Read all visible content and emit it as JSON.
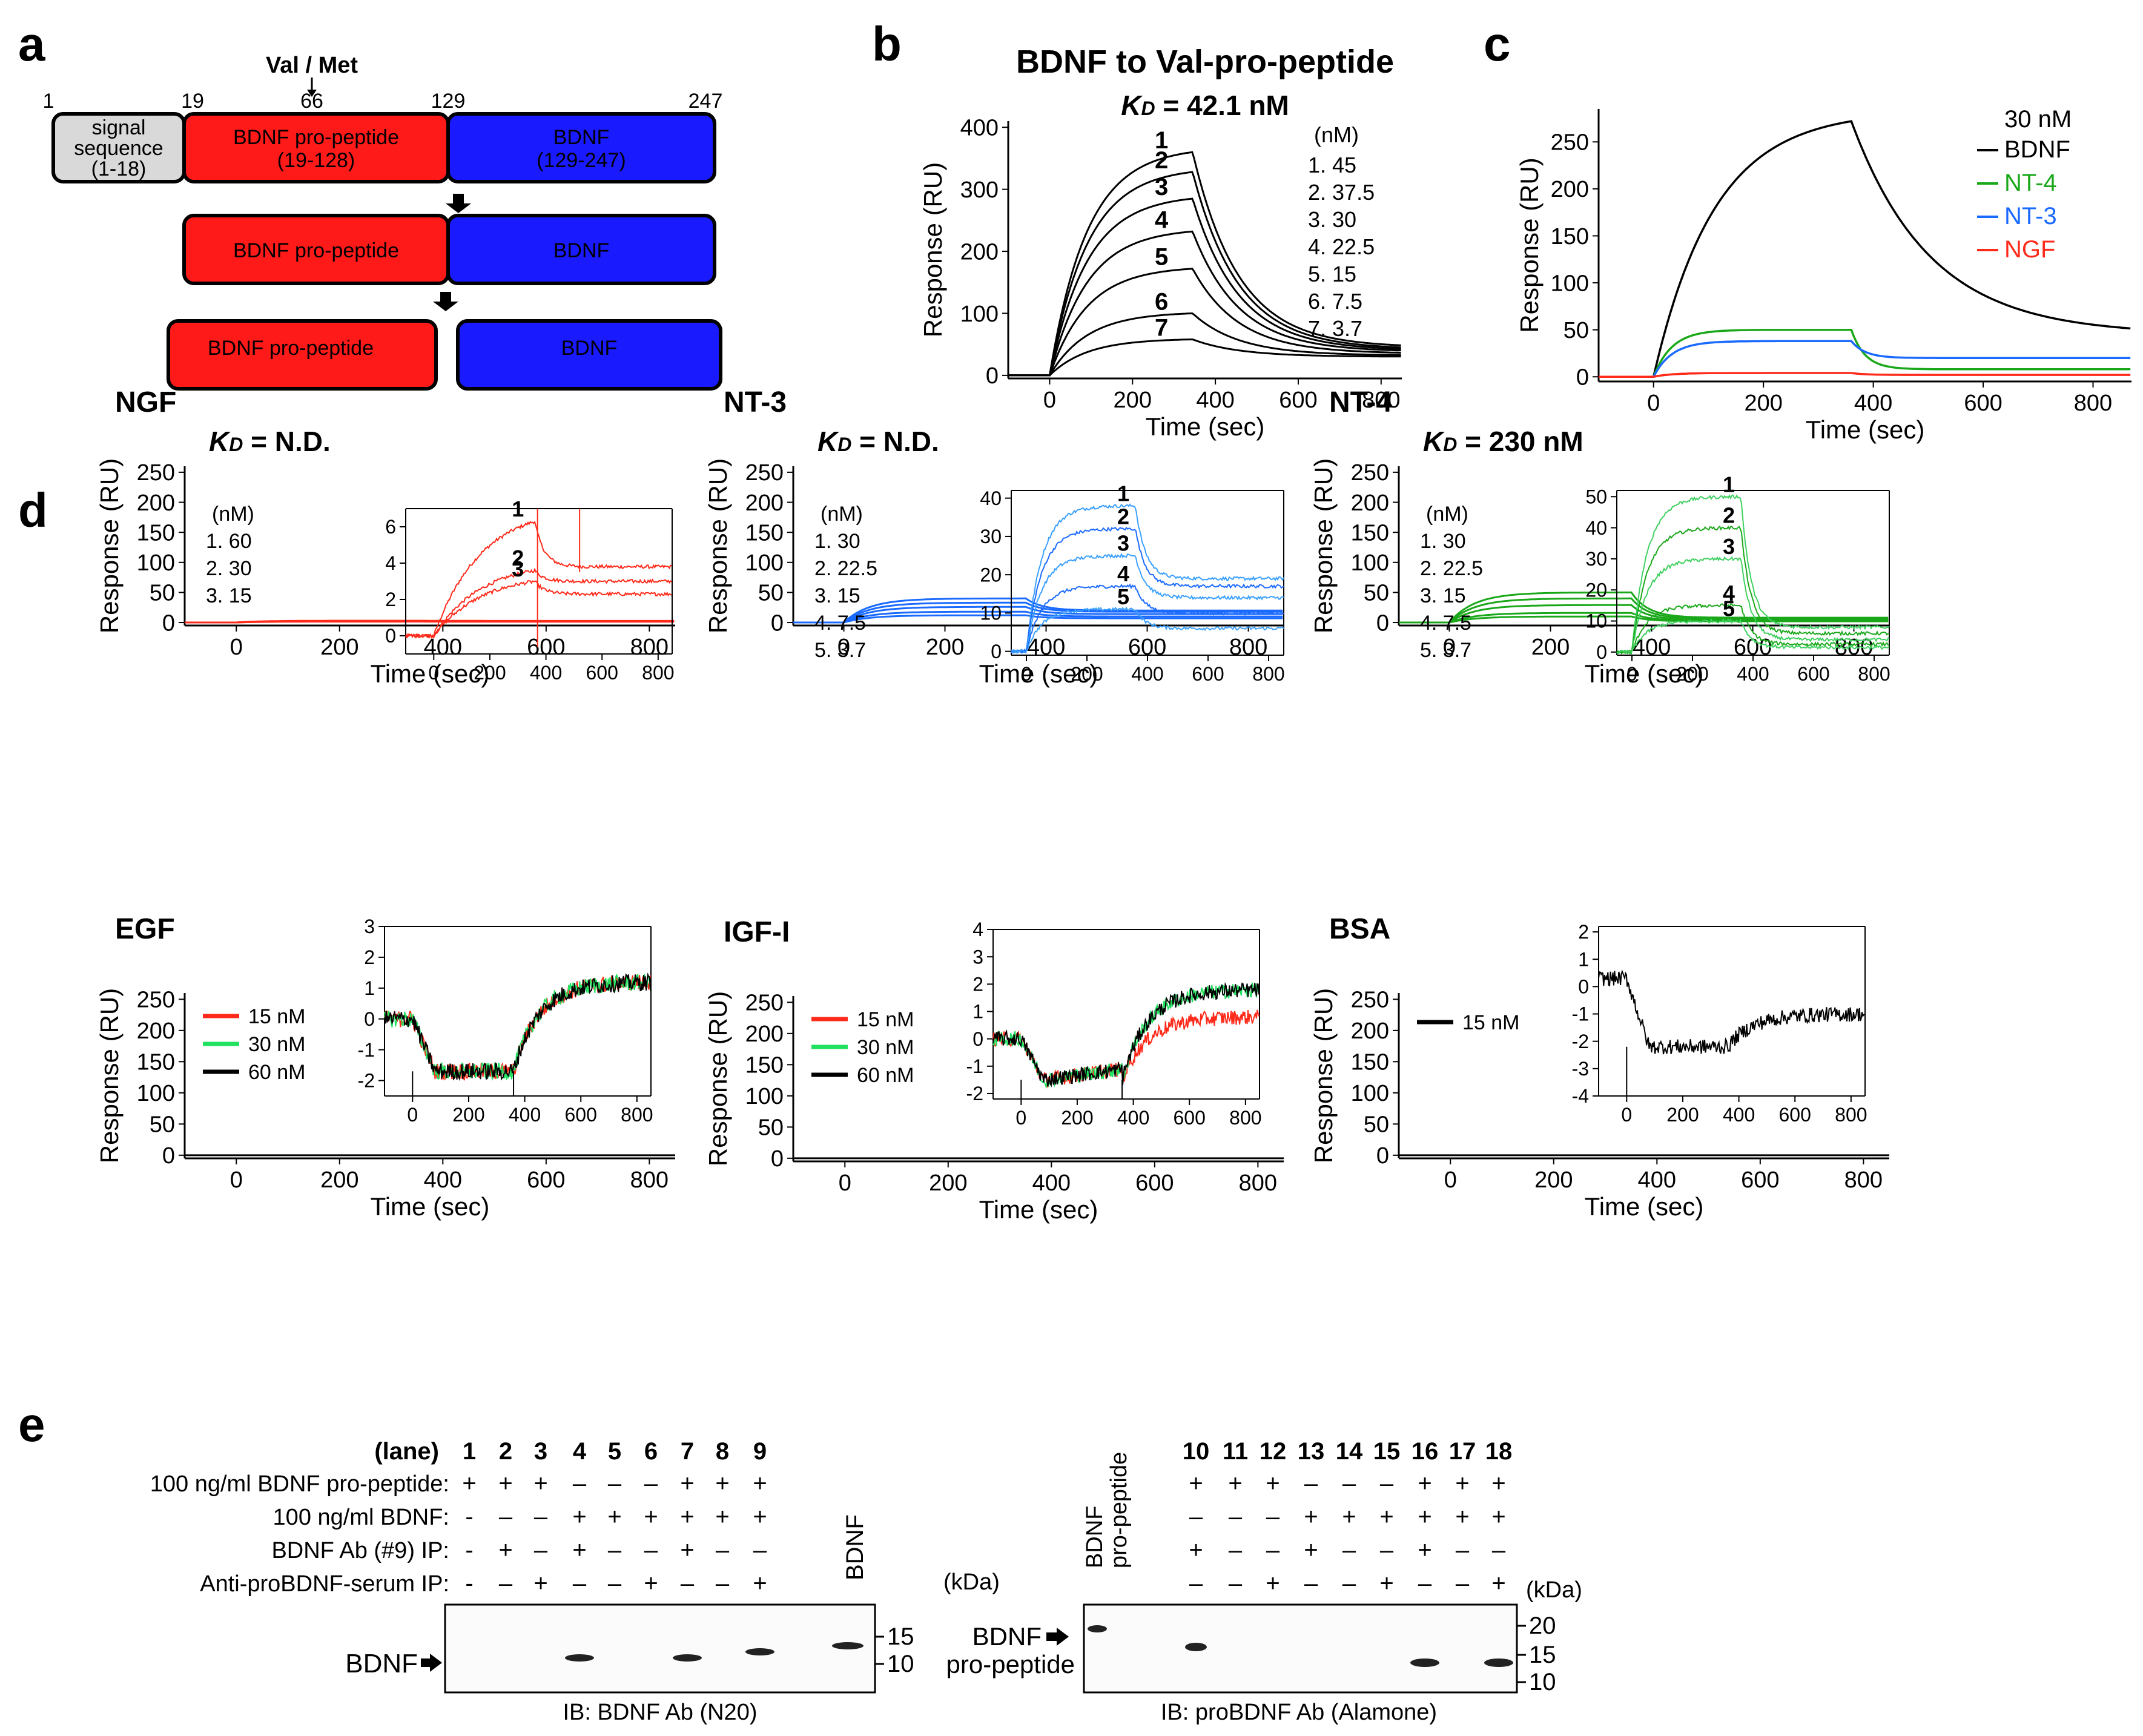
{
  "panel_labels": [
    "a",
    "b",
    "c",
    "d",
    "e"
  ],
  "panel_a": {
    "header": "Val / Met",
    "positions": [
      "1",
      "19",
      "66",
      "129",
      "247"
    ],
    "boxes": [
      {
        "text1": "signal",
        "text2": "sequence",
        "text3": "(1-18)",
        "color": "#d9d9d9"
      },
      {
        "text1": "BDNF pro-peptide",
        "text2": "(19-128)",
        "color": "#ff1a1a"
      },
      {
        "text1": "BDNF",
        "text2": "(129-247)",
        "color": "#1a1aff"
      }
    ],
    "row2": [
      "BDNF pro-peptide",
      "BDNF"
    ],
    "row3": [
      "BDNF pro-peptide",
      "BDNF"
    ]
  },
  "colors": {
    "black": "#000000",
    "red": "#ff2a1a",
    "blue": "#1a6aff",
    "green": "#1aa81a",
    "bright_green": "#22e060",
    "gray": "#d9d9d9"
  },
  "chart_data": [
    {
      "id": "b",
      "type": "line",
      "title": "BDNF to Val-pro-peptide",
      "subtitle": "K",
      "subtitle_sub": "D",
      "subtitle_rest": " = 42.1 nM",
      "xlabel": "Time (sec)",
      "ylabel": "Response (RU)",
      "xlim": [
        -100,
        850
      ],
      "ylim": [
        -5,
        410
      ],
      "xticks": [
        "0",
        "200",
        "400",
        "600",
        "800"
      ],
      "xtick_values": [
        0,
        200,
        400,
        600,
        800
      ],
      "yticks": [
        "0",
        "100",
        "200",
        "300",
        "400"
      ],
      "ytick_values": [
        0,
        100,
        200,
        300,
        400
      ],
      "legend_header": "(nM)",
      "legend": [
        "1. 45",
        "2. 37.5",
        "3. 30",
        "4. 22.5",
        "5. 15",
        "6.  7.5",
        "7.  3.7"
      ],
      "series": [
        {
          "name": "1",
          "plateau": 360,
          "end": 45
        },
        {
          "name": "2",
          "plateau": 328,
          "end": 42
        },
        {
          "name": "3",
          "plateau": 285,
          "end": 40
        },
        {
          "name": "4",
          "plateau": 232,
          "end": 38
        },
        {
          "name": "5",
          "plateau": 172,
          "end": 35
        },
        {
          "name": "6",
          "plateau": 100,
          "end": 32
        },
        {
          "name": "7",
          "plateau": 58,
          "end": 30
        }
      ],
      "assoc_end": 345
    },
    {
      "id": "c",
      "type": "line",
      "xlabel": "Time (sec)",
      "ylabel": "Response (RU)",
      "xlim": [
        -100,
        870
      ],
      "ylim": [
        -5,
        285
      ],
      "xticks": [
        "0",
        "200",
        "400",
        "600",
        "800"
      ],
      "xtick_values": [
        0,
        200,
        400,
        600,
        800
      ],
      "yticks": [
        "0",
        "50",
        "100",
        "150",
        "200",
        "250"
      ],
      "ytick_values": [
        0,
        50,
        100,
        150,
        200,
        250
      ],
      "legend_header": "30 nM",
      "legend": [
        "BDNF",
        "NT-4",
        "NT-3",
        "NGF"
      ],
      "series": [
        {
          "name": "BDNF",
          "color": "#000000",
          "plateau": 272,
          "end": 45
        },
        {
          "name": "NT-4",
          "color": "#1aa81a",
          "plateau": 50,
          "end": 8
        },
        {
          "name": "NT-3",
          "color": "#1a6aff",
          "plateau": 38,
          "end": 20
        },
        {
          "name": "NGF",
          "color": "#ff2a1a",
          "plateau": 4,
          "end": 2
        }
      ],
      "assoc_end": 360
    },
    {
      "id": "d-NGF",
      "type": "line",
      "title": "NGF",
      "kd_prefix": "K",
      "kd_sub": "D",
      "kd_rest": " = N.D.",
      "xlabel": "Time (sec)",
      "ylabel": "Response (RU)",
      "xlim": [
        -100,
        850
      ],
      "ylim": [
        -5,
        260
      ],
      "xticks": [
        "0",
        "200",
        "400",
        "600",
        "800"
      ],
      "xtick_values": [
        0,
        200,
        400,
        600,
        800
      ],
      "yticks": [
        "0",
        "50",
        "100",
        "150",
        "200",
        "250"
      ],
      "ytick_values": [
        0,
        50,
        100,
        150,
        200,
        250
      ],
      "legend": [
        "(nM)",
        "1. 60",
        "2. 30",
        "3. 15"
      ],
      "series": [
        {
          "name": "60 nM",
          "color": "#ff2a1a",
          "plateau": 3
        },
        {
          "name": "30 nM",
          "color": "#ff2a1a",
          "plateau": 2
        },
        {
          "name": "15 nM",
          "color": "#ff2a1a",
          "plateau": 1.5
        }
      ],
      "inset": {
        "xticks": [
          "0",
          "200",
          "400",
          "600",
          "800"
        ],
        "xtick_values": [
          0,
          200,
          400,
          600,
          800
        ],
        "yticks": [
          "0",
          "2",
          "4",
          "6"
        ],
        "ytick_values": [
          0,
          2,
          4,
          6
        ],
        "xlim": [
          -100,
          850
        ],
        "ylim": [
          -1,
          7
        ],
        "labels": [
          "1",
          "2",
          "3"
        ],
        "series": [
          {
            "plateau": 6.3,
            "end": 3.8
          },
          {
            "plateau": 3.6,
            "end": 3.0
          },
          {
            "plateau": 3.0,
            "end": 2.3
          }
        ],
        "noise": 0.35
      }
    },
    {
      "id": "d-NT3",
      "type": "line",
      "title": "NT-3",
      "kd_prefix": "K",
      "kd_sub": "D",
      "kd_rest": " = N.D.",
      "xlabel": "Time (sec)",
      "ylabel": "Response (RU)",
      "xlim": [
        -100,
        870
      ],
      "ylim": [
        -5,
        260
      ],
      "xticks": [
        "0",
        "200",
        "400",
        "600",
        "800"
      ],
      "xtick_values": [
        0,
        200,
        400,
        600,
        800
      ],
      "yticks": [
        "0",
        "50",
        "100",
        "150",
        "200",
        "250"
      ],
      "ytick_values": [
        0,
        50,
        100,
        150,
        200,
        250
      ],
      "legend": [
        "(nM)",
        "1. 30",
        "2. 22.5",
        "3. 15",
        "4.  7.5",
        "5.  3.7"
      ],
      "series": [
        {
          "plateau": 40,
          "end": 20
        },
        {
          "plateau": 33,
          "end": 18
        },
        {
          "plateau": 26,
          "end": 14
        },
        {
          "plateau": 18,
          "end": 10
        },
        {
          "plateau": 12,
          "end": 7
        }
      ],
      "inset": {
        "xticks": [
          "0",
          "200",
          "400",
          "600",
          "800"
        ],
        "xtick_values": [
          0,
          200,
          400,
          600,
          800
        ],
        "yticks": [
          "0",
          "10",
          "20",
          "30",
          "40"
        ],
        "ytick_values": [
          0,
          10,
          20,
          30,
          40
        ],
        "xlim": [
          -50,
          850
        ],
        "ylim": [
          -1,
          42
        ],
        "labels": [
          "1",
          "2",
          "3",
          "4",
          "5"
        ],
        "series": [
          {
            "plateau": 38,
            "end": 19
          },
          {
            "plateau": 32,
            "end": 17
          },
          {
            "plateau": 25,
            "end": 14
          },
          {
            "plateau": 17,
            "end": 10
          },
          {
            "plateau": 11,
            "end": 6
          }
        ],
        "noise": 0.3
      }
    },
    {
      "id": "d-NT4",
      "type": "line",
      "title": "NT-4",
      "kd_prefix": "K",
      "kd_sub": "D",
      "kd_rest": " = 230 nM",
      "xlabel": "Time (sec)",
      "ylabel": "Response (RU)",
      "xlim": [
        -100,
        870
      ],
      "ylim": [
        -5,
        260
      ],
      "xticks": [
        "0",
        "200",
        "400",
        "600",
        "800"
      ],
      "xtick_values": [
        0,
        200,
        400,
        600,
        800
      ],
      "yticks": [
        "0",
        "50",
        "100",
        "150",
        "200",
        "250"
      ],
      "ytick_values": [
        0,
        50,
        100,
        150,
        200,
        250
      ],
      "legend": [
        "(nM)",
        "1. 30",
        "2. 22.5",
        "3. 15",
        "4.  7.5",
        "5.  3.7"
      ],
      "series": [
        {
          "plateau": 50,
          "end": 8
        },
        {
          "plateau": 40,
          "end": 6
        },
        {
          "plateau": 29,
          "end": 4
        },
        {
          "plateau": 16,
          "end": 3
        },
        {
          "plateau": 10,
          "end": 2
        }
      ],
      "inset": {
        "xticks": [
          "0",
          "200",
          "400",
          "600",
          "800"
        ],
        "xtick_values": [
          0,
          200,
          400,
          600,
          800
        ],
        "yticks": [
          "0",
          "10",
          "20",
          "30",
          "40",
          "50"
        ],
        "ytick_values": [
          0,
          10,
          20,
          30,
          40,
          50
        ],
        "xlim": [
          -50,
          850
        ],
        "ylim": [
          -1,
          52
        ],
        "labels": [
          "1",
          "2",
          "3",
          "4",
          "5"
        ],
        "series": [
          {
            "plateau": 50,
            "end": 8
          },
          {
            "plateau": 40,
            "end": 6
          },
          {
            "plateau": 30,
            "end": 4
          },
          {
            "plateau": 15,
            "end": 2.5
          },
          {
            "plateau": 10,
            "end": 1.5
          }
        ],
        "noise": 0.3
      }
    },
    {
      "id": "d-EGF",
      "type": "line",
      "title": "EGF",
      "xlabel": "Time (sec)",
      "ylabel": "Response (RU)",
      "xlim": [
        -100,
        850
      ],
      "ylim": [
        -5,
        260
      ],
      "xticks": [
        "0",
        "200",
        "400",
        "600",
        "800"
      ],
      "xtick_values": [
        0,
        200,
        400,
        600,
        800
      ],
      "yticks": [
        "0",
        "50",
        "100",
        "150",
        "200",
        "250"
      ],
      "ytick_values": [
        0,
        50,
        100,
        150,
        200,
        250
      ],
      "legend": [
        "15 nM",
        "30 nM",
        "60 nM"
      ],
      "legend_colors": [
        "#ff2a1a",
        "#22e060",
        "#000000"
      ],
      "inset": {
        "xticks": [
          "0",
          "200",
          "400",
          "600",
          "800"
        ],
        "xtick_values": [
          0,
          200,
          400,
          600,
          800
        ],
        "yticks": [
          "-2",
          "-1",
          "0",
          "1",
          "2",
          "3"
        ],
        "ytick_values": [
          -2,
          -1,
          0,
          1,
          2,
          3
        ],
        "xlim": [
          -100,
          850
        ],
        "ylim": [
          -2.5,
          3
        ],
        "dip": -1.7,
        "recover": 1.2
      }
    },
    {
      "id": "d-IGF",
      "type": "line",
      "title": "IGF-I",
      "xlabel": "Time (sec)",
      "ylabel": "Response (RU)",
      "xlim": [
        -100,
        850
      ],
      "ylim": [
        -5,
        260
      ],
      "xticks": [
        "0",
        "200",
        "400",
        "600",
        "800"
      ],
      "xtick_values": [
        0,
        200,
        400,
        600,
        800
      ],
      "yticks": [
        "0",
        "50",
        "100",
        "150",
        "200",
        "250"
      ],
      "ytick_values": [
        0,
        50,
        100,
        150,
        200,
        250
      ],
      "legend": [
        "15 nM",
        "30 nM",
        "60 nM"
      ],
      "legend_colors": [
        "#ff2a1a",
        "#22e060",
        "#000000"
      ],
      "inset": {
        "xticks": [
          "0",
          "200",
          "400",
          "600",
          "800"
        ],
        "xtick_values": [
          0,
          200,
          400,
          600,
          800
        ],
        "yticks": [
          "-2",
          "-1",
          "0",
          "1",
          "2",
          "3",
          "4"
        ],
        "ytick_values": [
          -2,
          -1,
          0,
          1,
          2,
          3,
          4
        ],
        "xlim": [
          -100,
          850
        ],
        "ylim": [
          -2.2,
          4
        ],
        "dip": -1.5,
        "recover": 1.8
      }
    },
    {
      "id": "d-BSA",
      "type": "line",
      "title": "BSA",
      "xlabel": "Time (sec)",
      "ylabel": "Response (RU)",
      "xlim": [
        -100,
        850
      ],
      "ylim": [
        -5,
        260
      ],
      "xticks": [
        "0",
        "200",
        "400",
        "600",
        "800"
      ],
      "xtick_values": [
        0,
        200,
        400,
        600,
        800
      ],
      "yticks": [
        "0",
        "50",
        "100",
        "150",
        "200",
        "250"
      ],
      "ytick_values": [
        0,
        50,
        100,
        150,
        200,
        250
      ],
      "legend": [
        "15 nM"
      ],
      "legend_colors": [
        "#000000"
      ],
      "inset": {
        "xticks": [
          "0",
          "200",
          "400",
          "600",
          "800"
        ],
        "xtick_values": [
          0,
          200,
          400,
          600,
          800
        ],
        "yticks": [
          "-4",
          "-3",
          "-2",
          "-1",
          "0",
          "1",
          "2"
        ],
        "ytick_values": [
          -4,
          -3,
          -2,
          -1,
          0,
          1,
          2
        ],
        "xlim": [
          -100,
          850
        ],
        "ylim": [
          -4,
          2.2
        ],
        "dip": -2.2,
        "recover": -1.0
      }
    }
  ],
  "panel_e": {
    "lane_header": "(lane)",
    "lanes_left": [
      "1",
      "2",
      "3",
      "4",
      "5",
      "6",
      "7",
      "8",
      "9"
    ],
    "lanes_right": [
      "10",
      "11",
      "12",
      "13",
      "14",
      "15",
      "16",
      "17",
      "18"
    ],
    "rows": [
      {
        "label": "100 ng/ml BDNF pro-peptide:",
        "left": [
          "+",
          "+",
          "+",
          "–",
          "–",
          "–",
          "+",
          "+",
          "+"
        ],
        "right": [
          "+",
          "+",
          "+",
          "–",
          "–",
          "–",
          "+",
          "+",
          "+"
        ]
      },
      {
        "label": "100 ng/ml BDNF:",
        "left": [
          "-",
          "–",
          "–",
          "+",
          "+",
          "+",
          "+",
          "+",
          "+"
        ],
        "right": [
          "–",
          "–",
          "–",
          "+",
          "+",
          "+",
          "+",
          "+",
          "+"
        ]
      },
      {
        "label": "BDNF Ab (#9) IP:",
        "left": [
          "-",
          "+",
          "–",
          "+",
          "–",
          "–",
          "+",
          "–",
          "–"
        ],
        "right": [
          "+",
          "–",
          "–",
          "+",
          "–",
          "–",
          "+",
          "–",
          "–"
        ]
      },
      {
        "label": "Anti-proBDNF-serum IP:",
        "left": [
          "-",
          "–",
          "+",
          "–",
          "–",
          "+",
          "–",
          "–",
          "+"
        ],
        "right": [
          "–",
          "–",
          "+",
          "–",
          "–",
          "+",
          "–",
          "–",
          "+"
        ]
      }
    ],
    "kda": "(kDa)",
    "left_marker_col": "BDNF",
    "right_marker_col1": "BDNF",
    "right_marker_col2": "pro-peptide",
    "left_markers": [
      "15",
      "10"
    ],
    "right_markers": [
      "20",
      "15",
      "10"
    ],
    "left_band_label": "BDNF",
    "right_band_label1": "BDNF",
    "right_band_label2": "pro-peptide",
    "left_ib": "IB: BDNF Ab (N20)",
    "right_ib": "IB: proBDNF Ab (Alamone)",
    "left_band_lanes": [
      4,
      7,
      9
    ],
    "right_band_lanes": [
      10,
      16,
      18
    ]
  }
}
